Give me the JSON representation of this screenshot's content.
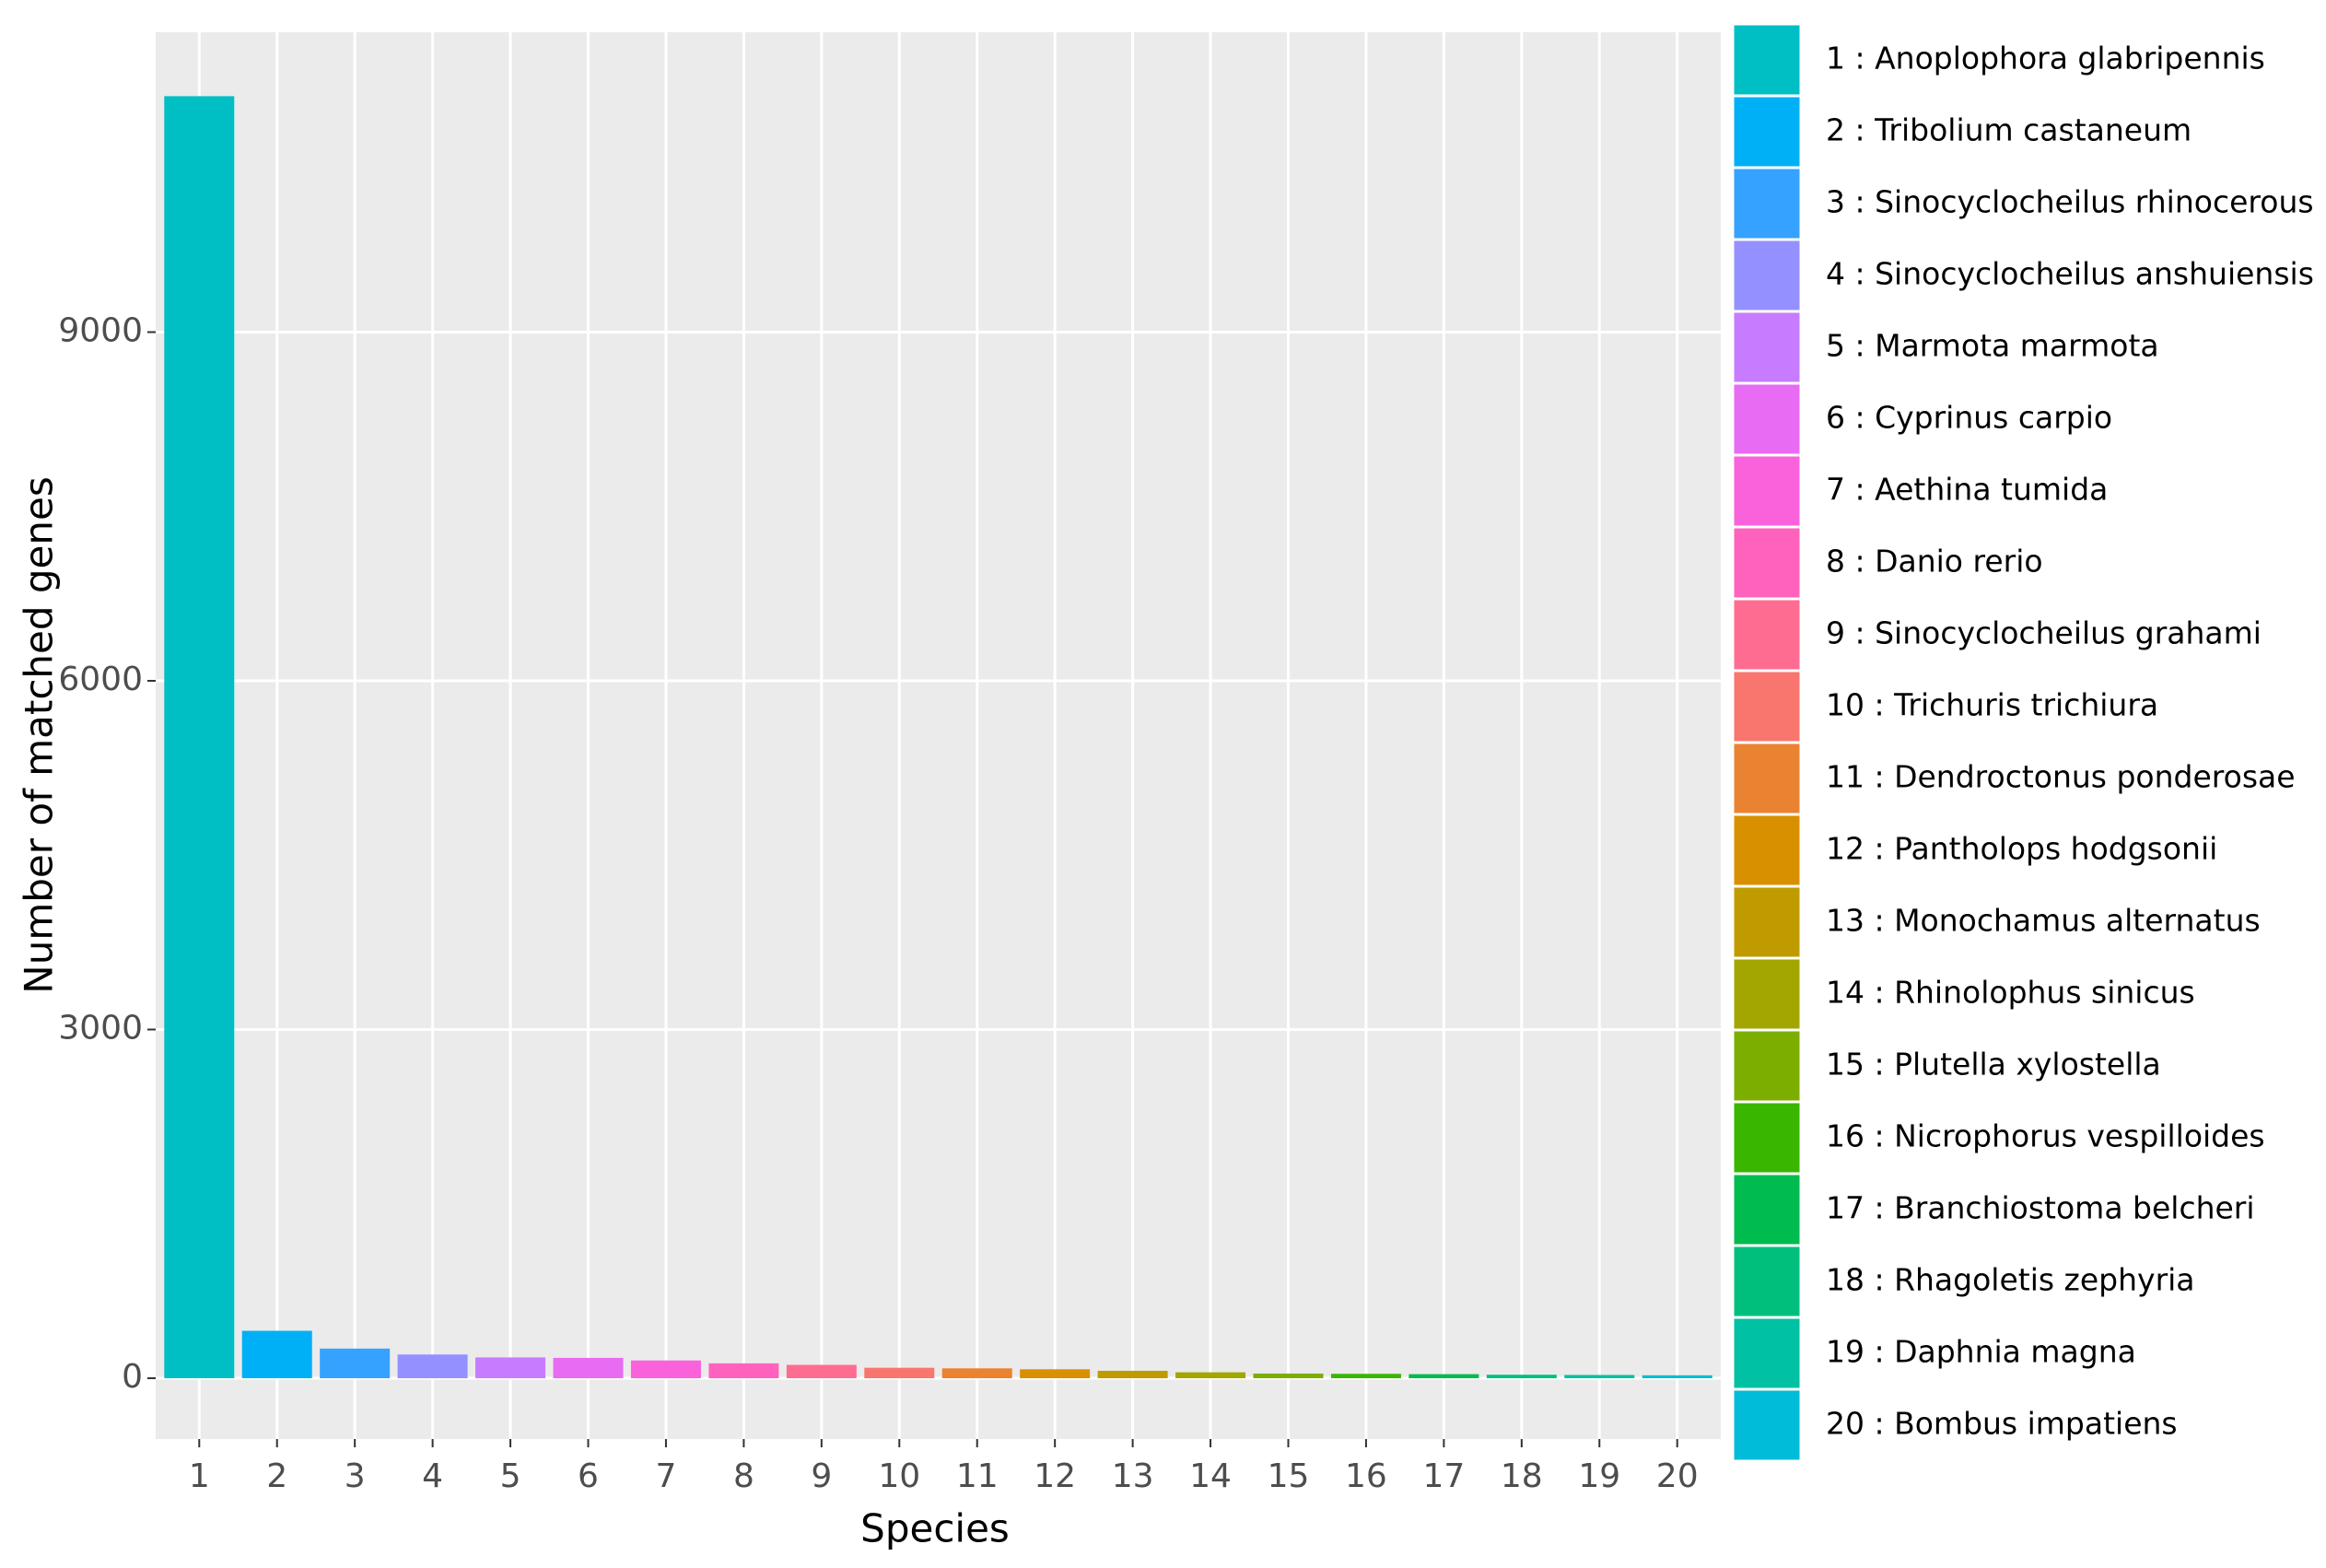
{
  "chart_data": {
    "type": "bar",
    "x_label": "Species",
    "y_label": "Number of matched genes",
    "categories": [
      "1",
      "2",
      "3",
      "4",
      "5",
      "6",
      "7",
      "8",
      "9",
      "10",
      "11",
      "12",
      "13",
      "14",
      "15",
      "16",
      "17",
      "18",
      "19",
      "20"
    ],
    "values": [
      11030,
      408,
      255,
      204,
      179,
      175,
      153,
      128,
      115,
      90,
      85,
      77,
      64,
      51,
      40,
      38,
      35,
      30,
      28,
      25
    ],
    "colors": [
      "#00BFC4",
      "#00B0F6",
      "#35A2FF",
      "#9590FF",
      "#C77CFF",
      "#E76BF3",
      "#FA62DB",
      "#FF62BC",
      "#FF6C91",
      "#F8766D",
      "#EA8331",
      "#D89000",
      "#C09B00",
      "#A3A500",
      "#7CAE00",
      "#39B600",
      "#00BB4E",
      "#00BF7D",
      "#00C1A3",
      "#00BCD8"
    ],
    "legend_labels": [
      "1 : Anoplophora glabripennis",
      "2 : Tribolium castaneum",
      "3 : Sinocyclocheilus rhinocerous",
      "4 : Sinocyclocheilus anshuiensis",
      "5 : Marmota marmota",
      "6 : Cyprinus carpio",
      "7 : Aethina tumida",
      "8 : Danio rerio",
      "9 : Sinocyclocheilus grahami",
      "10 : Trichuris trichiura",
      "11 : Dendroctonus ponderosae",
      "12 : Pantholops hodgsonii",
      "13 : Monochamus alternatus",
      "14 : Rhinolophus sinicus",
      "15 : Plutella xylostella",
      "16 : Nicrophorus vespilloides",
      "17 : Branchiostoma belcheri",
      "18 : Rhagoletis zephyria",
      "19 : Daphnia magna",
      "20 : Bombus impatiens"
    ],
    "ylim": [
      -523,
      11580
    ],
    "yticks": [
      0,
      3000,
      6000,
      9000
    ],
    "grid": true
  }
}
